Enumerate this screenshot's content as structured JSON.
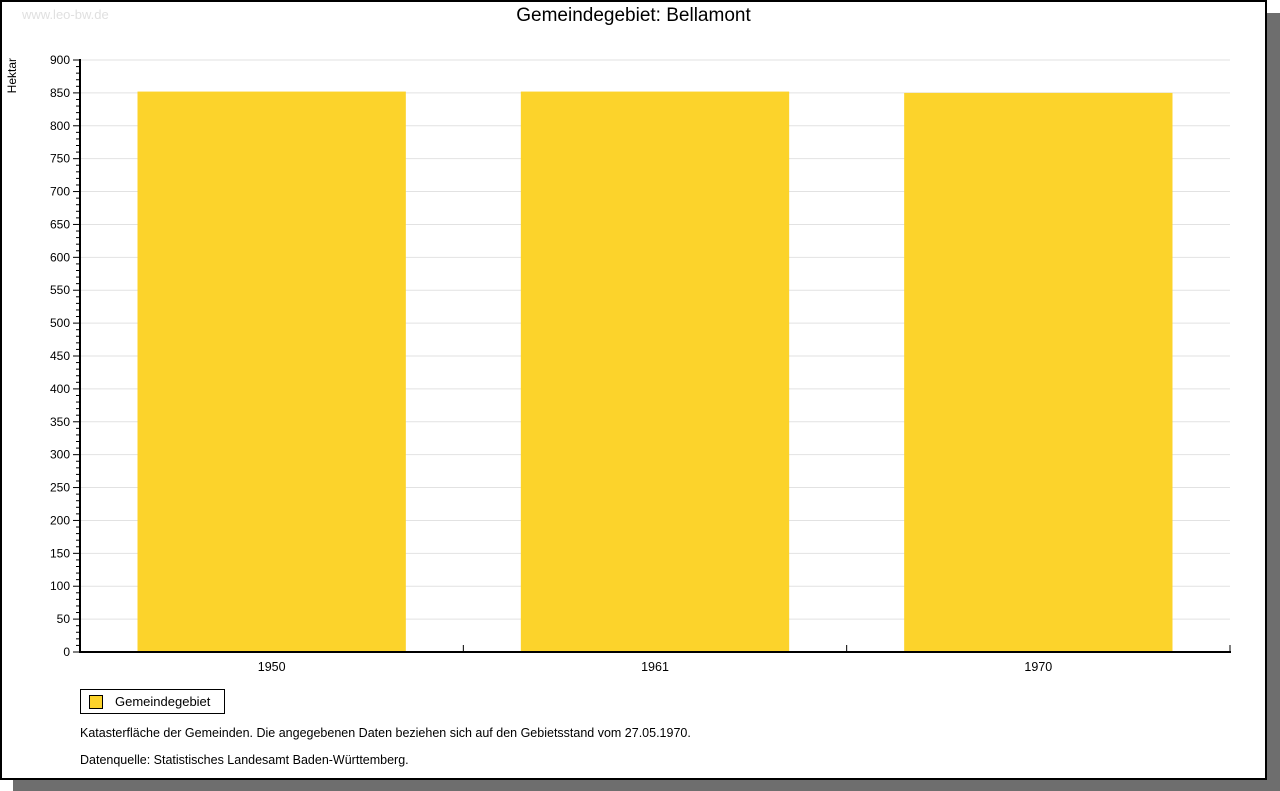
{
  "watermark": "www.leo-bw.de",
  "title": "Gemeindegebiet: Bellamont",
  "legend": {
    "label": "Gemeindegebiet"
  },
  "footnotes": [
    "Katasterfläche der Gemeinden. Die angegebenen Daten beziehen sich auf den Gebietsstand vom 27.05.1970.",
    "Datenquelle: Statistisches Landesamt Baden-Württemberg."
  ],
  "colors": {
    "bar": "#fcd32b",
    "grid": "#e2e2e2",
    "axis": "#000000",
    "watermark": "#e0e0e0",
    "frame_shadow": "#6e6e6e"
  },
  "chart_data": {
    "type": "bar",
    "title": "Gemeindegebiet: Bellamont",
    "categories": [
      "1950",
      "1961",
      "1970"
    ],
    "series": [
      {
        "name": "Gemeindegebiet",
        "values": [
          852,
          852,
          850
        ]
      }
    ],
    "xlabel": "",
    "ylabel": "Hektar",
    "ylim": [
      0,
      900
    ],
    "y_major_step": 50,
    "y_minor_step": 10,
    "grid": "horizontal-major-only",
    "legend_position": "bottom-left",
    "bar_width_fraction": 0.7
  }
}
